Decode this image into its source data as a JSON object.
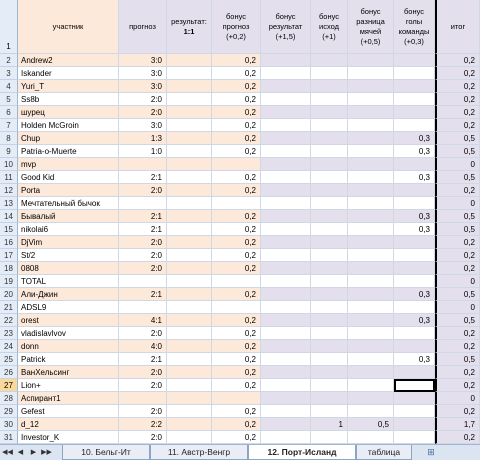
{
  "headers": {
    "row_num": "1",
    "participant": "участник",
    "forecast": "прогноз",
    "result_label": "результат:",
    "result_value": "1:1",
    "bonus_forecast": "бонус прогноз (+0,2)",
    "bonus_result": "бонус результат (+1,5)",
    "bonus_outcome": "бонус исход (+1)",
    "bonus_goal_diff": "бонус разница мячей (+0,5)",
    "bonus_team_goals": "бонус голы команды (+0,3)",
    "total": "итог"
  },
  "rows": [
    {
      "n": "2",
      "name": "Andrew2",
      "fc": "3:0",
      "bp": "0,2",
      "br": "",
      "bo": "",
      "bd": "",
      "bg": "",
      "t": "0,2"
    },
    {
      "n": "3",
      "name": "Iskander",
      "fc": "3:0",
      "bp": "0,2",
      "br": "",
      "bo": "",
      "bd": "",
      "bg": "",
      "t": "0,2"
    },
    {
      "n": "4",
      "name": "Yuri_T",
      "fc": "3:0",
      "bp": "0,2",
      "br": "",
      "bo": "",
      "bd": "",
      "bg": "",
      "t": "0,2"
    },
    {
      "n": "5",
      "name": "Ss8b",
      "fc": "2:0",
      "bp": "0,2",
      "br": "",
      "bo": "",
      "bd": "",
      "bg": "",
      "t": "0,2"
    },
    {
      "n": "6",
      "name": "шурец",
      "fc": "2:0",
      "bp": "0,2",
      "br": "",
      "bo": "",
      "bd": "",
      "bg": "",
      "t": "0,2"
    },
    {
      "n": "7",
      "name": "Holden McGroin",
      "fc": "3:0",
      "bp": "0,2",
      "br": "",
      "bo": "",
      "bd": "",
      "bg": "",
      "t": "0,2"
    },
    {
      "n": "8",
      "name": "Chup",
      "fc": "1:3",
      "bp": "0,2",
      "br": "",
      "bo": "",
      "bd": "",
      "bg": "0,3",
      "t": "0,5"
    },
    {
      "n": "9",
      "name": "Patria-o-Muerte",
      "fc": "1:0",
      "bp": "0,2",
      "br": "",
      "bo": "",
      "bd": "",
      "bg": "0,3",
      "t": "0,5"
    },
    {
      "n": "10",
      "name": "mvp",
      "fc": "",
      "bp": "",
      "br": "",
      "bo": "",
      "bd": "",
      "bg": "",
      "t": "0"
    },
    {
      "n": "11",
      "name": "Good Kid",
      "fc": "2:1",
      "bp": "0,2",
      "br": "",
      "bo": "",
      "bd": "",
      "bg": "0,3",
      "t": "0,5"
    },
    {
      "n": "12",
      "name": "Porta",
      "fc": "2:0",
      "bp": "0,2",
      "br": "",
      "bo": "",
      "bd": "",
      "bg": "",
      "t": "0,2"
    },
    {
      "n": "13",
      "name": "Мечтательный бычок",
      "fc": "",
      "bp": "",
      "br": "",
      "bo": "",
      "bd": "",
      "bg": "",
      "t": "0"
    },
    {
      "n": "14",
      "name": "Бывалый",
      "fc": "2:1",
      "bp": "0,2",
      "br": "",
      "bo": "",
      "bd": "",
      "bg": "0,3",
      "t": "0,5"
    },
    {
      "n": "15",
      "name": "nikolai6",
      "fc": "2:1",
      "bp": "0,2",
      "br": "",
      "bo": "",
      "bd": "",
      "bg": "0,3",
      "t": "0,5"
    },
    {
      "n": "16",
      "name": "DjVim",
      "fc": "2:0",
      "bp": "0,2",
      "br": "",
      "bo": "",
      "bd": "",
      "bg": "",
      "t": "0,2"
    },
    {
      "n": "17",
      "name": "St/2",
      "fc": "2:0",
      "bp": "0,2",
      "br": "",
      "bo": "",
      "bd": "",
      "bg": "",
      "t": "0,2"
    },
    {
      "n": "18",
      "name": "0808",
      "fc": "2:0",
      "bp": "0,2",
      "br": "",
      "bo": "",
      "bd": "",
      "bg": "",
      "t": "0,2"
    },
    {
      "n": "19",
      "name": "TOTAL",
      "fc": "",
      "bp": "",
      "br": "",
      "bo": "",
      "bd": "",
      "bg": "",
      "t": "0"
    },
    {
      "n": "20",
      "name": "Али-Джин",
      "fc": "2:1",
      "bp": "0,2",
      "br": "",
      "bo": "",
      "bd": "",
      "bg": "0,3",
      "t": "0,5"
    },
    {
      "n": "21",
      "name": "ADSL9",
      "fc": "",
      "bp": "",
      "br": "",
      "bo": "",
      "bd": "",
      "bg": "",
      "t": "0"
    },
    {
      "n": "22",
      "name": "orest",
      "fc": "4:1",
      "bp": "0,2",
      "br": "",
      "bo": "",
      "bd": "",
      "bg": "0,3",
      "t": "0,5"
    },
    {
      "n": "23",
      "name": "vladislavlvov",
      "fc": "2:0",
      "bp": "0,2",
      "br": "",
      "bo": "",
      "bd": "",
      "bg": "",
      "t": "0,2"
    },
    {
      "n": "24",
      "name": "donn",
      "fc": "4:0",
      "bp": "0,2",
      "br": "",
      "bo": "",
      "bd": "",
      "bg": "",
      "t": "0,2"
    },
    {
      "n": "25",
      "name": "Patrick",
      "fc": "2:1",
      "bp": "0,2",
      "br": "",
      "bo": "",
      "bd": "",
      "bg": "0,3",
      "t": "0,5"
    },
    {
      "n": "26",
      "name": "ВанХельсинг",
      "fc": "2:0",
      "bp": "0,2",
      "br": "",
      "bo": "",
      "bd": "",
      "bg": "",
      "t": "0,2"
    },
    {
      "n": "27",
      "name": "Lion+",
      "fc": "2:0",
      "bp": "0,2",
      "br": "",
      "bo": "",
      "bd": "",
      "bg": "",
      "t": "0,2"
    },
    {
      "n": "28",
      "name": "Аспирант1",
      "fc": "",
      "bp": "",
      "br": "",
      "bo": "",
      "bd": "",
      "bg": "",
      "t": "0"
    },
    {
      "n": "29",
      "name": "Gefest",
      "fc": "2:0",
      "bp": "0,2",
      "br": "",
      "bo": "",
      "bd": "",
      "bg": "",
      "t": "0,2"
    },
    {
      "n": "30",
      "name": "d_12",
      "fc": "2:2",
      "bp": "0,2",
      "br": "",
      "bo": "1",
      "bd": "0,5",
      "bg": "",
      "t": "1,7"
    },
    {
      "n": "31",
      "name": "Investor_K",
      "fc": "2:0",
      "bp": "0,2",
      "br": "",
      "bo": "",
      "bd": "",
      "bg": "",
      "t": "0,2"
    }
  ],
  "active_row": "27",
  "tabs": [
    {
      "label": "10. Бельг-Ит",
      "active": false
    },
    {
      "label": "11. Австр-Венгр",
      "active": false
    },
    {
      "label": "12. Порт-Исланд",
      "active": true
    },
    {
      "label": "таблица",
      "active": false
    }
  ],
  "nav": {
    "first": "◀◀",
    "prev": "◀",
    "next": "▶",
    "last": "▶▶",
    "add_tab": "⊞"
  },
  "colors": {
    "peach": "#fde9d9",
    "lavender": "#e4dfec",
    "rownum": "#e4ecf7"
  }
}
